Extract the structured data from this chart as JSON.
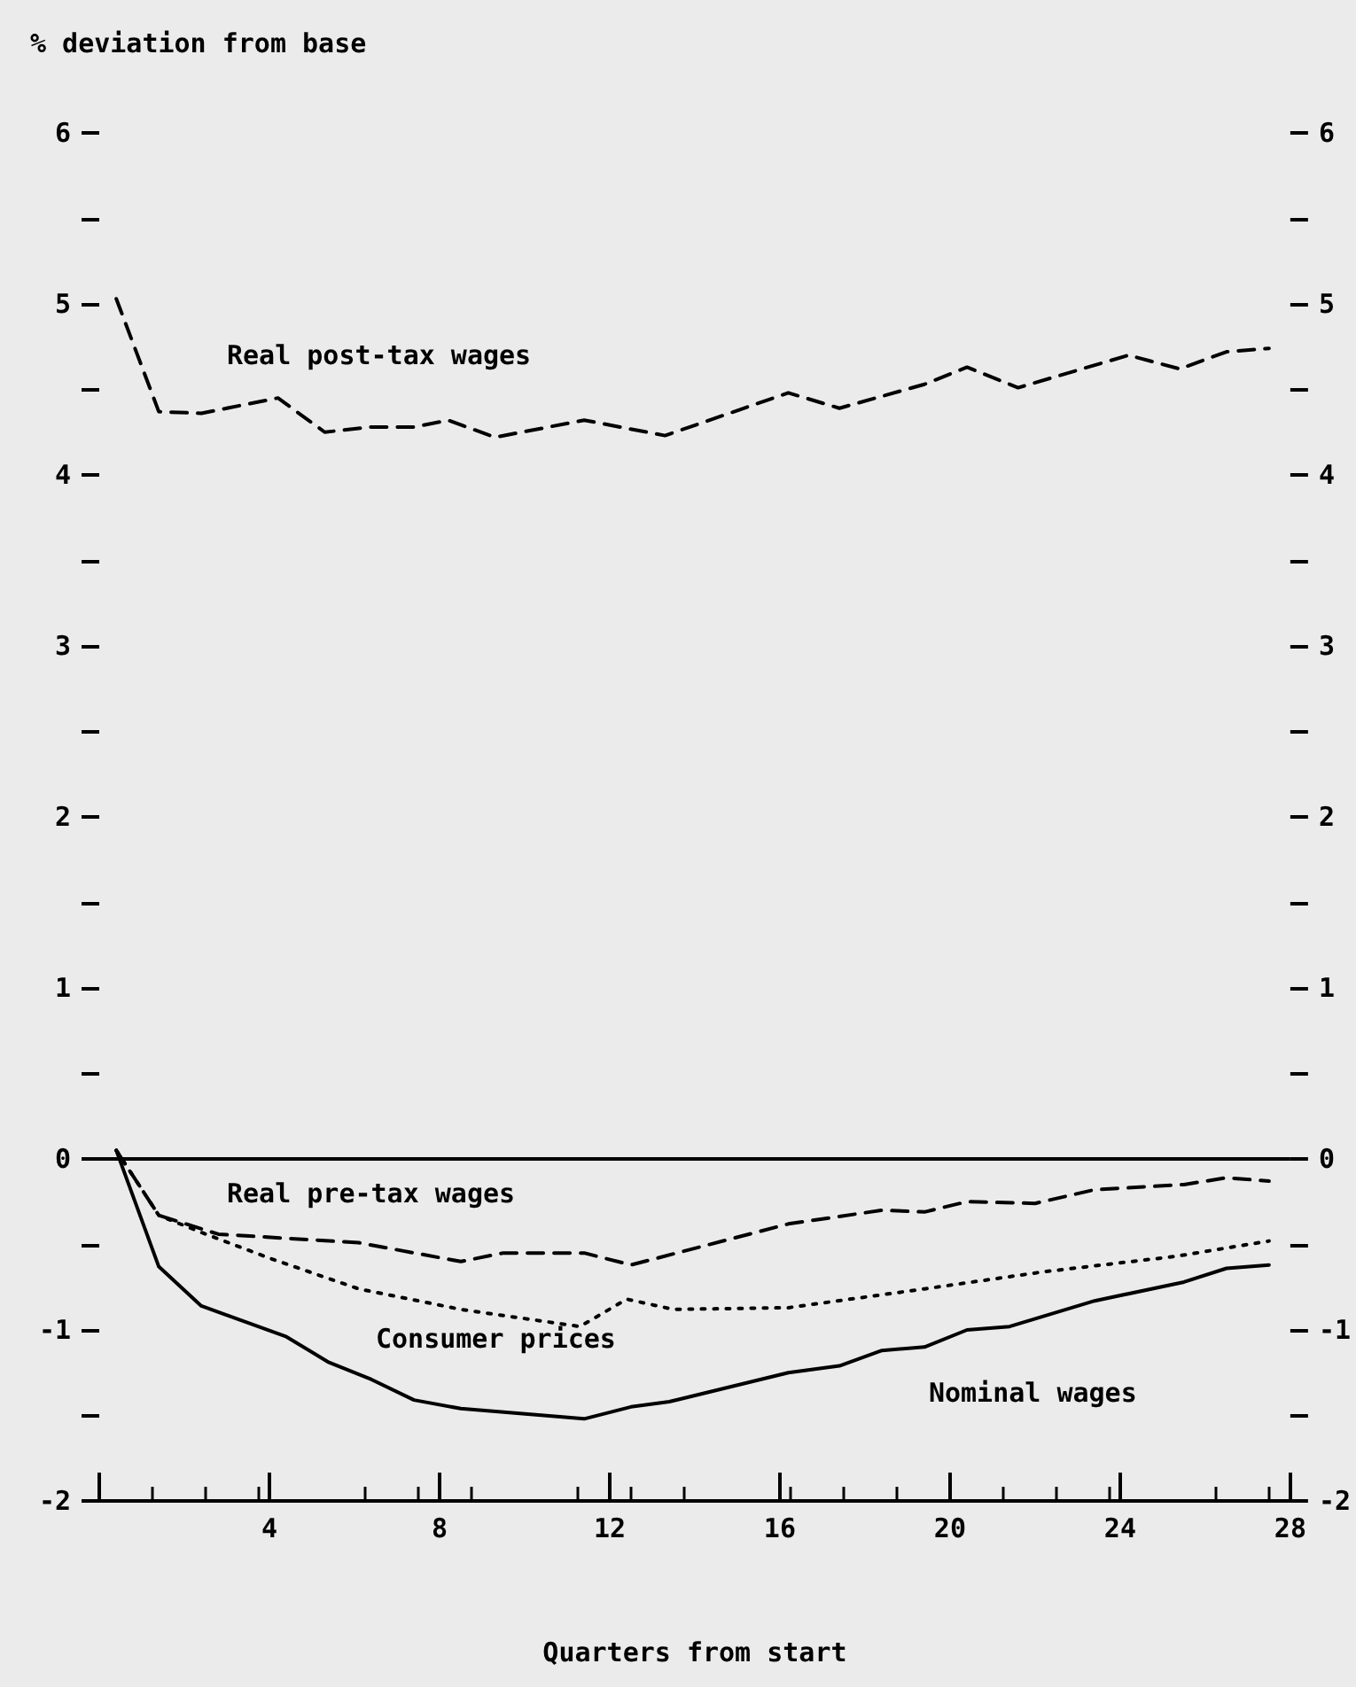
{
  "chart_data": {
    "type": "line",
    "ylabel": "% deviation from base",
    "xlabel": "Quarters from start",
    "xlim": [
      0,
      28
    ],
    "xticks": [
      {
        "value": 0,
        "label": null
      },
      4,
      8,
      12,
      16,
      20,
      24,
      28
    ],
    "ylim": [
      -2,
      6
    ],
    "yticks": [
      -2,
      {
        "value": -1.5,
        "label": null
      },
      -1,
      {
        "value": -0.5,
        "label": null
      },
      0,
      {
        "value": 0.5,
        "label": null
      },
      1,
      {
        "value": 1.5,
        "label": null
      },
      2,
      {
        "value": 2.5,
        "label": null
      },
      3,
      {
        "value": 3.5,
        "label": null
      },
      4,
      {
        "value": 4.5,
        "label": null
      },
      5,
      {
        "value": 5.5,
        "label": null
      },
      6
    ],
    "y2lim": [
      -2,
      6
    ],
    "y2ticks": [
      -2,
      {
        "value": -1.5,
        "label": null
      },
      -1,
      {
        "value": -0.5,
        "label": null
      },
      0,
      {
        "value": 0.5,
        "label": null
      },
      1,
      {
        "value": 1.5,
        "label": null
      },
      2,
      {
        "value": 2.5,
        "label": null
      },
      3,
      {
        "value": 3.5,
        "label": null
      },
      4,
      {
        "value": 4.5,
        "label": null
      },
      5,
      {
        "value": 5.5,
        "label": null
      },
      6
    ],
    "grid": false,
    "legend": false,
    "marker": "none",
    "ref_lines": [
      {
        "axis": "y",
        "value": 0,
        "color": "#000000",
        "line_style": "solid"
      }
    ],
    "series": [
      {
        "name": "Real post-tax wages",
        "color": "#000000",
        "line_style": "dashed",
        "x": [
          0.4,
          1.4,
          2.4,
          4.2,
          5.3,
          6.4,
          7.4,
          8.2,
          9.3,
          11.4,
          13.3,
          16.2,
          17.4,
          19.4,
          20.4,
          21.6,
          24.2,
          25.4,
          26.5,
          27.5
        ],
        "values": [
          5.03,
          4.37,
          4.36,
          4.45,
          4.25,
          4.28,
          4.28,
          4.32,
          4.22,
          4.32,
          4.23,
          4.48,
          4.39,
          4.53,
          4.63,
          4.51,
          4.7,
          4.62,
          4.72,
          4.74
        ]
      },
      {
        "name": "Real pre-tax wages",
        "color": "#000000",
        "line_style": "dashed",
        "x": [
          0.4,
          1.4,
          2.8,
          6.1,
          8.5,
          9.5,
          11.4,
          12.5,
          16.2,
          18.4,
          19.4,
          20.4,
          22.0,
          23.4,
          25.5,
          26.5,
          27.5
        ],
        "values": [
          0.05,
          -0.33,
          -0.44,
          -0.49,
          -0.6,
          -0.55,
          -0.55,
          -0.62,
          -0.38,
          -0.3,
          -0.31,
          -0.25,
          -0.26,
          -0.18,
          -0.15,
          -0.11,
          -0.13
        ]
      },
      {
        "name": "Consumer prices",
        "color": "#000000",
        "line_style": "dotted",
        "x": [
          0.4,
          1.4,
          2.4,
          4.0,
          6.1,
          8.5,
          11.3,
          12.4,
          13.5,
          16.2,
          19.4,
          22.2,
          25.3,
          27.5
        ],
        "values": [
          0.05,
          -0.33,
          -0.43,
          -0.58,
          -0.76,
          -0.88,
          -0.98,
          -0.82,
          -0.88,
          -0.87,
          -0.76,
          -0.66,
          -0.57,
          -0.48
        ]
      },
      {
        "name": "Nominal wages",
        "color": "#000000",
        "line_style": "solid",
        "x": [
          0.4,
          1.4,
          2.4,
          4.4,
          5.4,
          6.4,
          7.4,
          8.5,
          11.4,
          12.5,
          13.4,
          16.2,
          17.4,
          18.4,
          19.4,
          20.4,
          21.4,
          23.4,
          25.5,
          26.5,
          27.5
        ],
        "values": [
          0.05,
          -0.63,
          -0.86,
          -1.04,
          -1.19,
          -1.29,
          -1.41,
          -1.46,
          -1.52,
          -1.45,
          -1.42,
          -1.25,
          -1.21,
          -1.12,
          -1.1,
          -1.0,
          -0.98,
          -0.83,
          -0.72,
          -0.64,
          -0.62
        ]
      }
    ]
  }
}
